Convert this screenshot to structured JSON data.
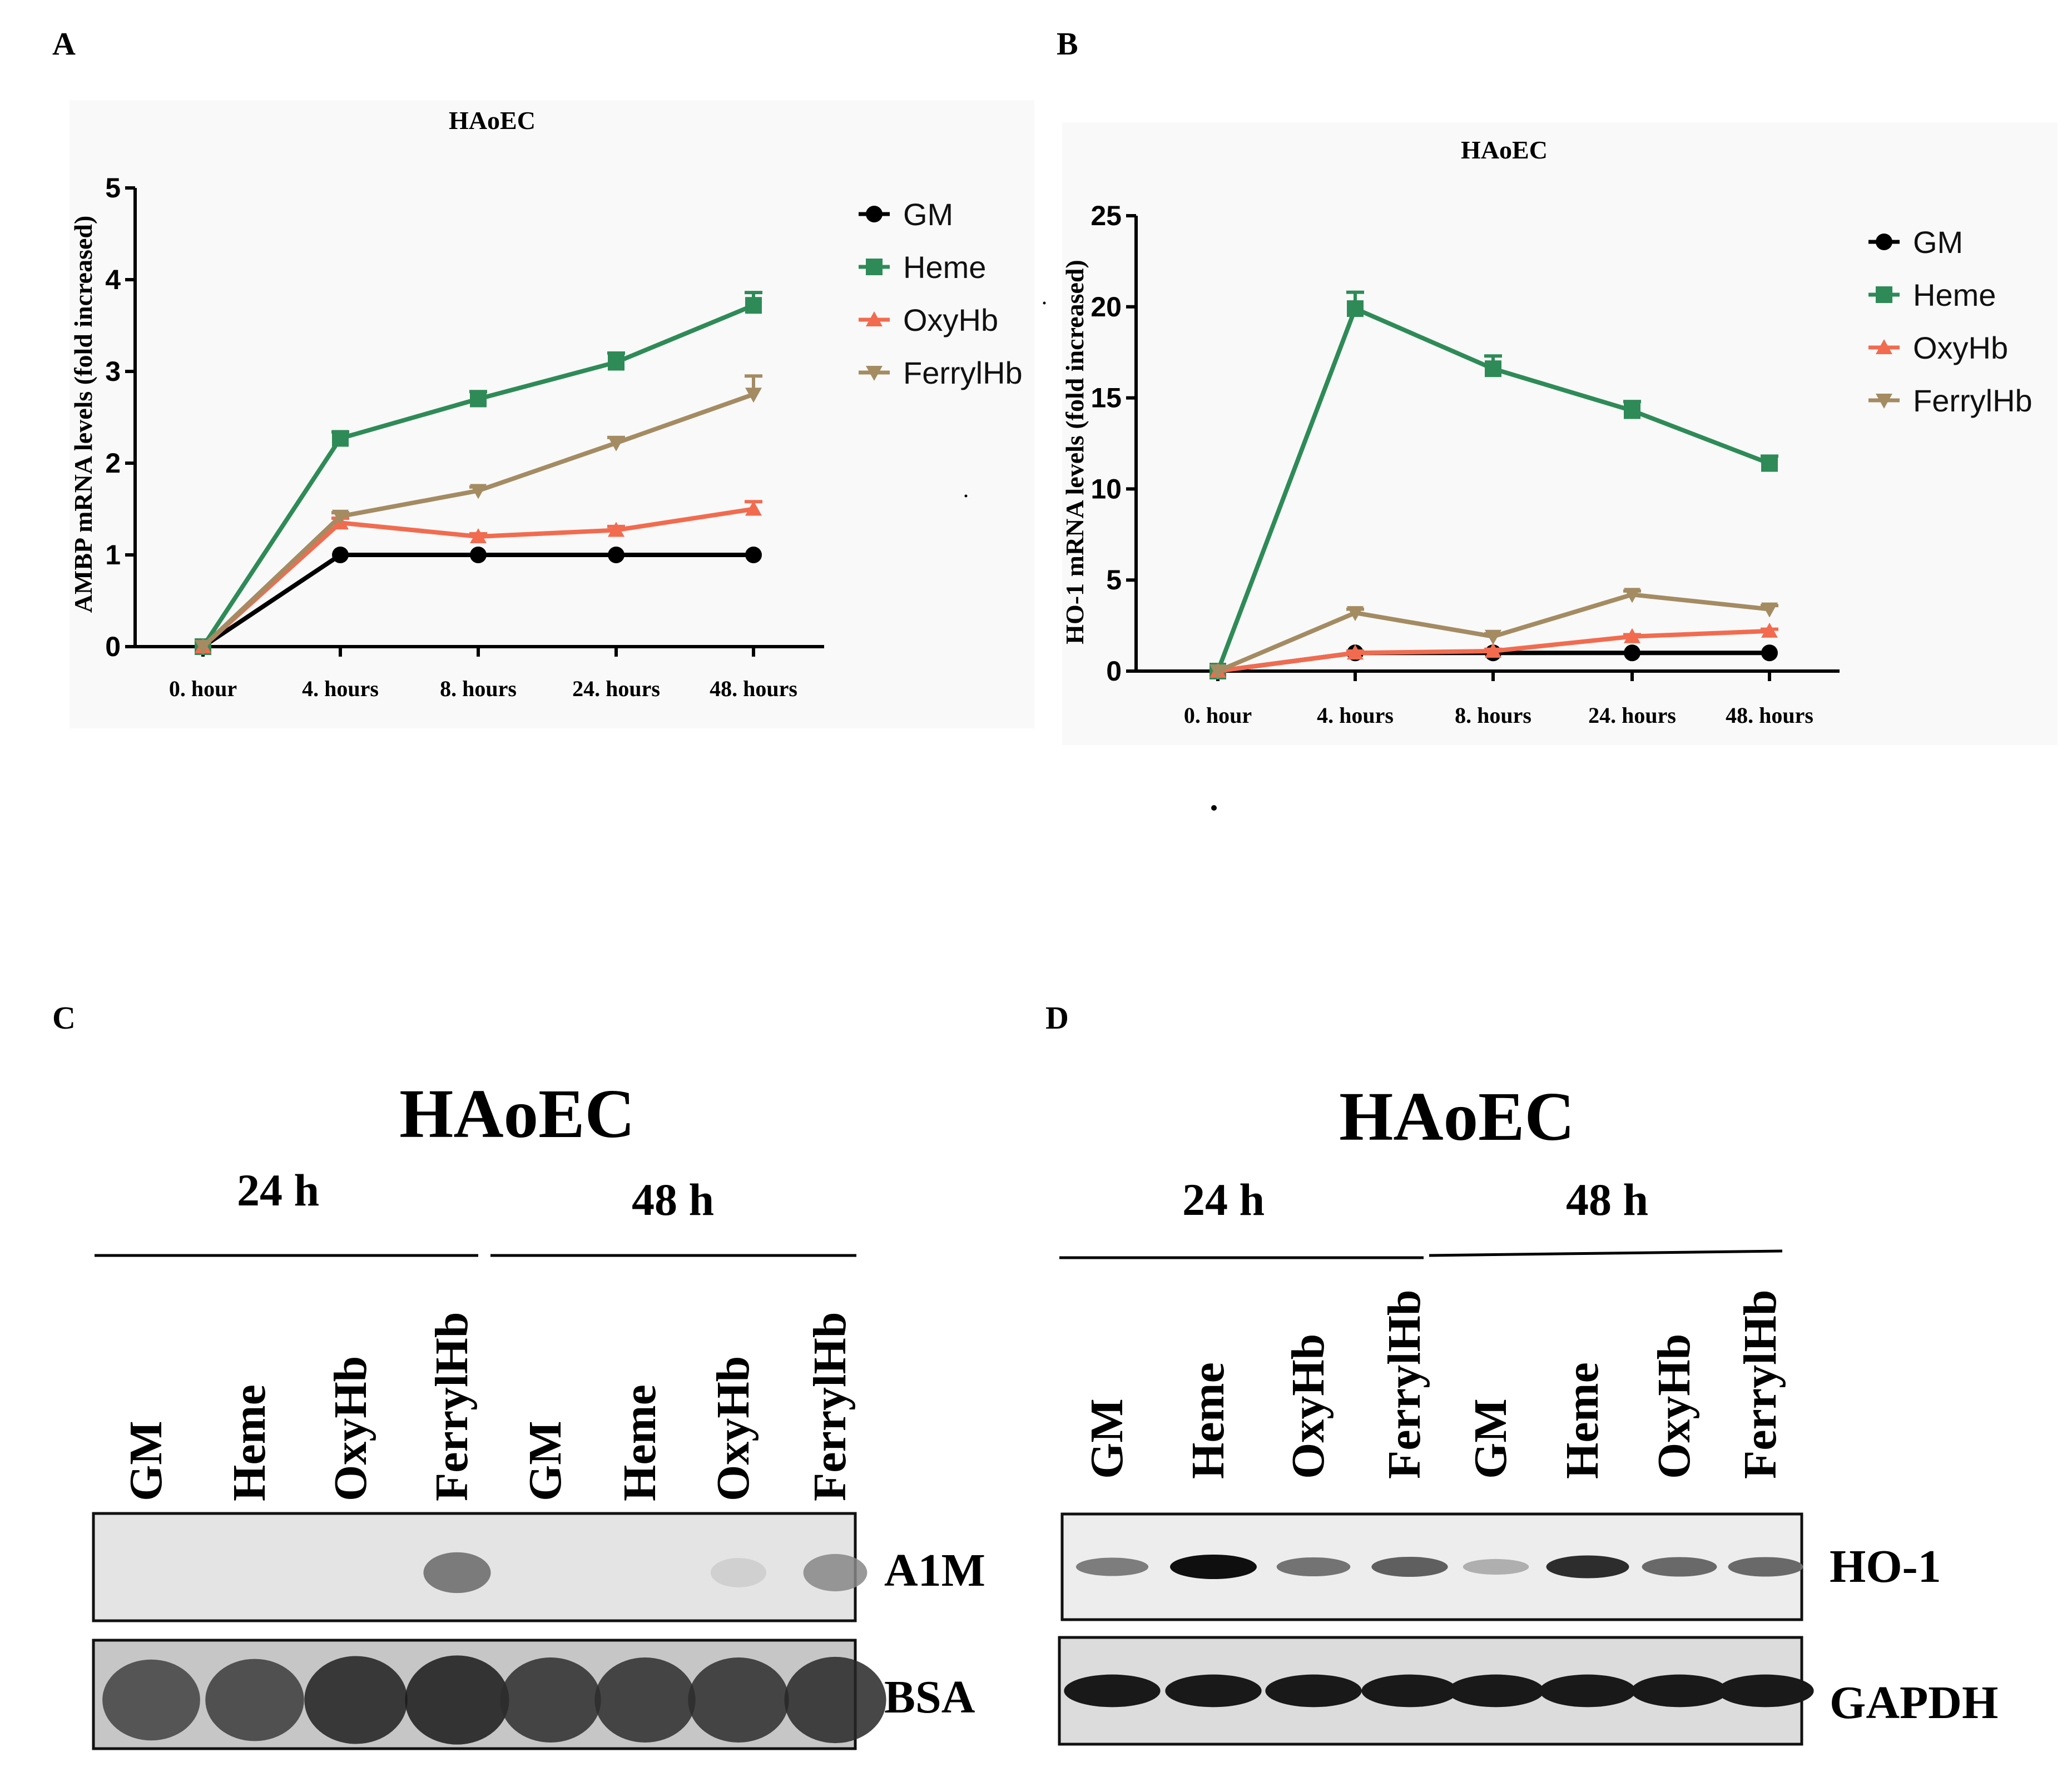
{
  "panels": {
    "A": "A",
    "B": "B",
    "C": "C",
    "D": "D"
  },
  "chart_data": [
    {
      "type": "line",
      "panel": "A",
      "title": "HAoEC",
      "ylabel": "AMBP mRNA levels (fold increased)",
      "xlabel": "",
      "ylim": [
        0,
        5
      ],
      "yticks": [
        0,
        1,
        2,
        3,
        4,
        5
      ],
      "categories": [
        "0. hour",
        "4. hours",
        "8. hours",
        "24. hours",
        "48. hours"
      ],
      "grid": false,
      "legend": "right",
      "series": [
        {
          "name": "GM",
          "color": "#000000",
          "marker": "circle",
          "values": [
            0,
            1.0,
            1.0,
            1.0,
            1.0
          ],
          "err": [
            0,
            0,
            0,
            0,
            0
          ]
        },
        {
          "name": "Heme",
          "color": "#2e8b57",
          "marker": "square",
          "values": [
            0,
            2.27,
            2.7,
            3.1,
            3.72
          ],
          "err": [
            0,
            0.07,
            0.08,
            0.1,
            0.14
          ]
        },
        {
          "name": "OxyHb",
          "color": "#f26b4f",
          "marker": "triangle-up",
          "values": [
            0,
            1.35,
            1.2,
            1.27,
            1.5
          ],
          "err": [
            0,
            0.05,
            0.03,
            0.04,
            0.08
          ]
        },
        {
          "name": "FerrylHb",
          "color": "#a48b62",
          "marker": "triangle-down",
          "values": [
            0,
            1.42,
            1.7,
            2.22,
            2.75
          ],
          "err": [
            0,
            0.04,
            0.04,
            0.06,
            0.2
          ]
        }
      ]
    },
    {
      "type": "line",
      "panel": "B",
      "title": "HAoEC",
      "ylabel": "HO-1 mRNA levels (fold increased)",
      "xlabel": "",
      "ylim": [
        0,
        25
      ],
      "yticks": [
        0,
        5,
        10,
        15,
        20,
        25
      ],
      "categories": [
        "0. hour",
        "4. hours",
        "8. hours",
        "24. hours",
        "48. hours"
      ],
      "grid": false,
      "legend": "right",
      "series": [
        {
          "name": "GM",
          "color": "#000000",
          "marker": "circle",
          "values": [
            0,
            1.0,
            1.0,
            1.0,
            1.0
          ],
          "err": [
            0,
            0,
            0,
            0,
            0
          ]
        },
        {
          "name": "Heme",
          "color": "#2e8b57",
          "marker": "square",
          "values": [
            0,
            19.9,
            16.6,
            14.3,
            11.4
          ],
          "err": [
            0,
            0.9,
            0.7,
            0.5,
            0.4
          ]
        },
        {
          "name": "OxyHb",
          "color": "#f26b4f",
          "marker": "triangle-up",
          "values": [
            0,
            1.0,
            1.1,
            1.9,
            2.2
          ],
          "err": [
            0,
            0.1,
            0.1,
            0.1,
            0.1
          ]
        },
        {
          "name": "FerrylHb",
          "color": "#a48b62",
          "marker": "triangle-down",
          "values": [
            0,
            3.2,
            1.9,
            4.2,
            3.4
          ],
          "err": [
            0,
            0.2,
            0.15,
            0.2,
            0.2
          ]
        }
      ]
    }
  ],
  "blots": [
    {
      "panel": "C",
      "title": "HAoEC",
      "groups": [
        "24 h",
        "48 h"
      ],
      "lanes": [
        "GM",
        "Heme",
        "OxyHb",
        "FerrylHb",
        "GM",
        "Heme",
        "OxyHb",
        "FerrylHb"
      ],
      "rows": [
        {
          "label": "A1M",
          "intensity": [
            0.02,
            0.02,
            0.02,
            0.55,
            0.02,
            0.02,
            0.05,
            0.4
          ]
        },
        {
          "label": "BSA",
          "intensity": [
            0.75,
            0.78,
            0.92,
            0.95,
            0.85,
            0.85,
            0.85,
            0.88
          ]
        }
      ]
    },
    {
      "panel": "D",
      "title": "HAoEC",
      "groups": [
        "24 h",
        "48 h"
      ],
      "lanes": [
        "GM",
        "Heme",
        "OxyHb",
        "FerrylHb",
        "GM",
        "Heme",
        "OxyHb",
        "FerrylHb"
      ],
      "rows": [
        {
          "label": "HO-1",
          "intensity": [
            0.45,
            1.0,
            0.5,
            0.6,
            0.2,
            0.85,
            0.55,
            0.55
          ]
        },
        {
          "label": "GAPDH",
          "intensity": [
            0.95,
            0.95,
            0.95,
            0.95,
            0.95,
            0.95,
            0.95,
            0.95
          ]
        }
      ]
    }
  ]
}
